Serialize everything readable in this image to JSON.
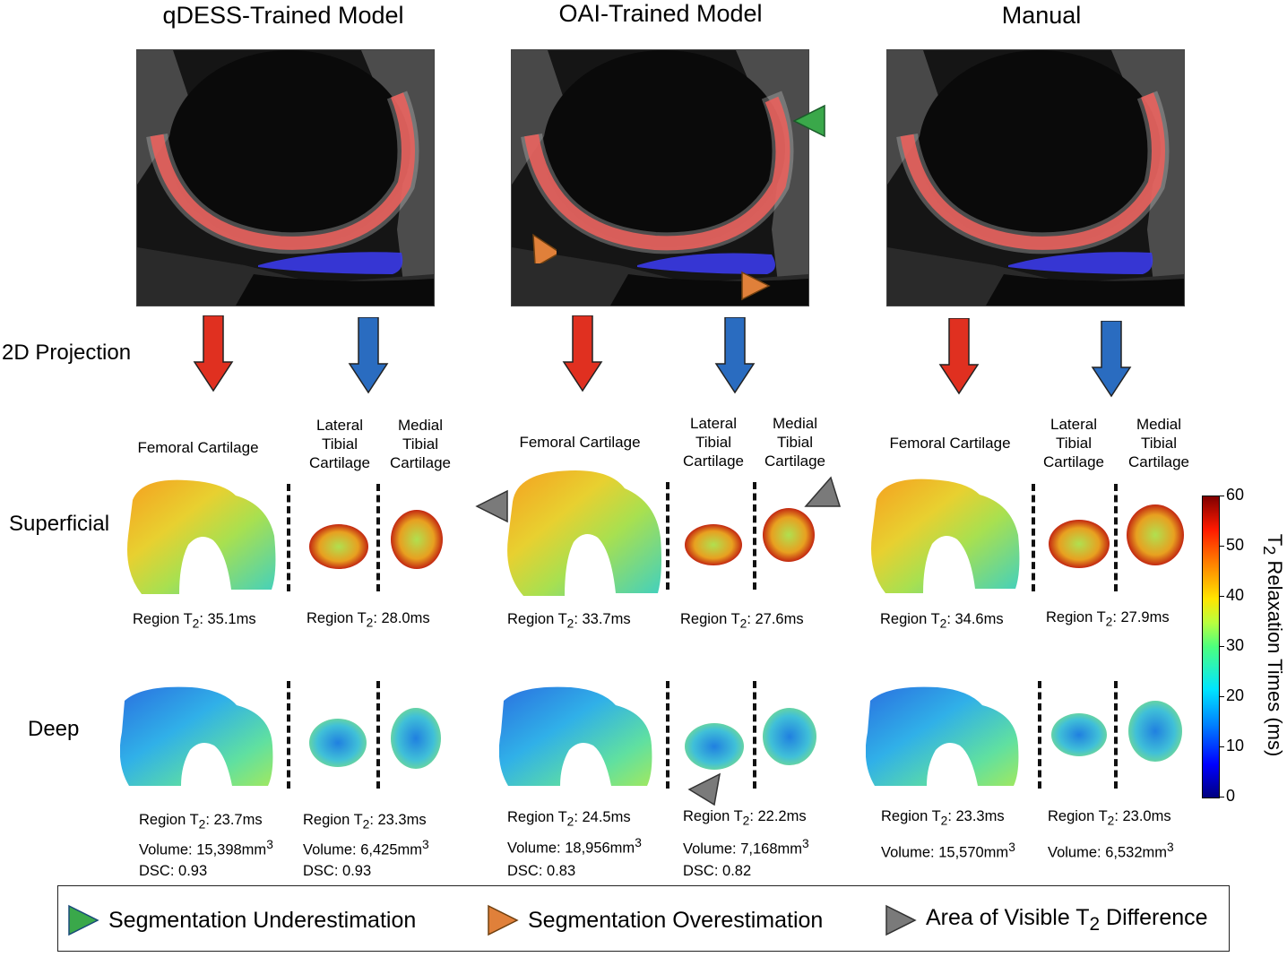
{
  "columns": [
    {
      "title": "qDESS-Trained Model",
      "superficial": {
        "femoral_t2": "35.1ms",
        "tibial_t2": "28.0ms"
      },
      "deep": {
        "femoral_t2": "23.7ms",
        "femoral_volume": "15,398mm",
        "femoral_dsc": "0.93",
        "tibial_t2": "23.3ms",
        "tibial_volume": "6,425mm",
        "tibial_dsc": "0.93"
      }
    },
    {
      "title": "OAI-Trained Model",
      "superficial": {
        "femoral_t2": "33.7ms",
        "tibial_t2": "27.6ms"
      },
      "deep": {
        "femoral_t2": "24.5ms",
        "femoral_volume": "18,956mm",
        "femoral_dsc": "0.83",
        "tibial_t2": "22.2ms",
        "tibial_volume": "7,168mm",
        "tibial_dsc": "0.82"
      }
    },
    {
      "title": "Manual",
      "superficial": {
        "femoral_t2": "34.6ms",
        "tibial_t2": "27.9ms"
      },
      "deep": {
        "femoral_t2": "23.3ms",
        "femoral_volume": "15,570mm",
        "tibial_t2": "23.0ms",
        "tibial_volume": "6,532mm"
      }
    }
  ],
  "labels": {
    "projection": "2D Projection",
    "superficial": "Superficial",
    "deep": "Deep",
    "femoral": "Femoral Cartilage",
    "lateral_tibial": [
      "Lateral",
      "Tibial",
      "Cartilage"
    ],
    "medial_tibial": [
      "Medial",
      "Tibial",
      "Cartilage"
    ],
    "region_prefix": "Region T",
    "subscript_2": "2",
    "volume_prefix": "Volume: ",
    "dsc_prefix": "DSC: ",
    "superscript_3": "3"
  },
  "colorbar": {
    "label_prefix": "T",
    "label_sub": "2",
    "label_suffix": " Relaxation Times (ms)",
    "ticks": [
      "60",
      "50",
      "40",
      "30",
      "20",
      "10",
      "0"
    ],
    "range": [
      0,
      60
    ]
  },
  "legend": {
    "underestimation": "Segmentation Underestimation",
    "overestimation": "Segmentation Overestimation",
    "difference_prefix": "Area of Visible T",
    "difference_sub": "2",
    "difference_suffix": " Difference"
  },
  "colors": {
    "femoral_overlay": "#e8605c",
    "tibial_overlay": "#3a3ae8",
    "femoral_arrow": "#e03020",
    "tibial_arrow": "#2a6cc0",
    "underestimation": "#3aa84a",
    "overestimation": "#e0803a",
    "difference": "#7a7a7a"
  }
}
